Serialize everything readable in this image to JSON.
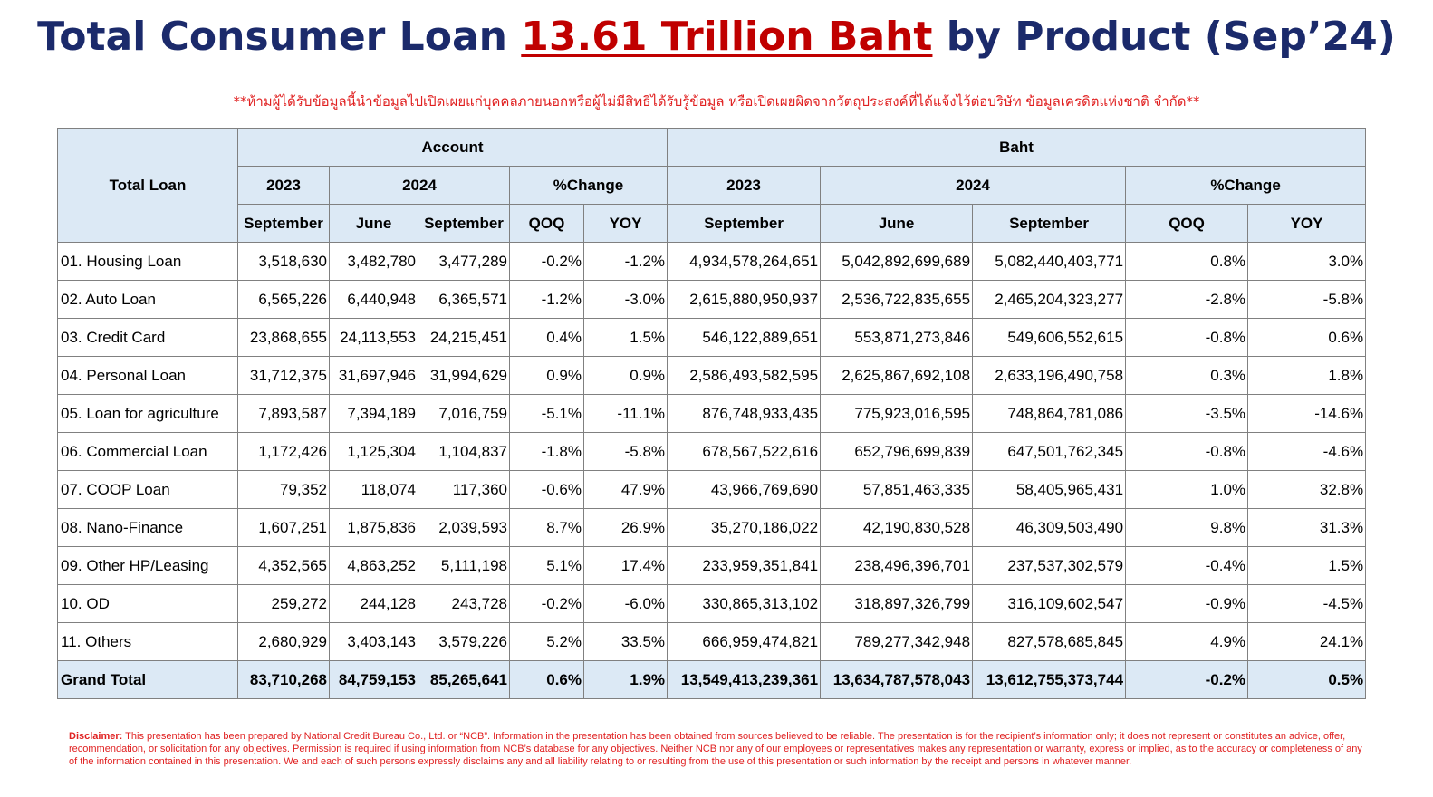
{
  "title": {
    "prefix": "Total Consumer Loan ",
    "highlight": "13.61 Trillion Baht",
    "suffix": " by Product (Sep’24)"
  },
  "warning": "**ห้ามผู้ได้รับข้อมูลนี้นำข้อมูลไปเปิดเผยแก่บุคคลภายนอกหรือผู้ไม่มีสิทธิได้รับรู้ข้อมูล หรือเปิดเผยผิดจากวัตถุประสงค์ที่ได้แจ้งไว้ต่อบริษัท ข้อมูลเครดิตแห่งชาติ จำกัด**",
  "table": {
    "row_header": "Total Loan",
    "groups": {
      "account": "Account",
      "baht": "Baht"
    },
    "years": {
      "y2023": "2023",
      "y2024": "2024",
      "change": "%Change"
    },
    "months": {
      "september": "September",
      "june": "June",
      "qoq": "QOQ",
      "yoy": "YOY"
    },
    "rows": [
      {
        "label": "01. Housing Loan",
        "acc_sep23": "3,518,630",
        "acc_jun24": "3,482,780",
        "acc_sep24": "3,477,289",
        "acc_qoq": "-0.2%",
        "acc_yoy": "-1.2%",
        "baht_sep23": "4,934,578,264,651",
        "baht_jun24": "5,042,892,699,689",
        "baht_sep24": "5,082,440,403,771",
        "baht_qoq": "0.8%",
        "baht_yoy": "3.0%"
      },
      {
        "label": "02. Auto Loan",
        "acc_sep23": "6,565,226",
        "acc_jun24": "6,440,948",
        "acc_sep24": "6,365,571",
        "acc_qoq": "-1.2%",
        "acc_yoy": "-3.0%",
        "baht_sep23": "2,615,880,950,937",
        "baht_jun24": "2,536,722,835,655",
        "baht_sep24": "2,465,204,323,277",
        "baht_qoq": "-2.8%",
        "baht_yoy": "-5.8%"
      },
      {
        "label": "03. Credit Card",
        "acc_sep23": "23,868,655",
        "acc_jun24": "24,113,553",
        "acc_sep24": "24,215,451",
        "acc_qoq": "0.4%",
        "acc_yoy": "1.5%",
        "baht_sep23": "546,122,889,651",
        "baht_jun24": "553,871,273,846",
        "baht_sep24": "549,606,552,615",
        "baht_qoq": "-0.8%",
        "baht_yoy": "0.6%"
      },
      {
        "label": "04. Personal Loan",
        "acc_sep23": "31,712,375",
        "acc_jun24": "31,697,946",
        "acc_sep24": "31,994,629",
        "acc_qoq": "0.9%",
        "acc_yoy": "0.9%",
        "baht_sep23": "2,586,493,582,595",
        "baht_jun24": "2,625,867,692,108",
        "baht_sep24": "2,633,196,490,758",
        "baht_qoq": "0.3%",
        "baht_yoy": "1.8%"
      },
      {
        "label": "05. Loan for agriculture",
        "acc_sep23": "7,893,587",
        "acc_jun24": "7,394,189",
        "acc_sep24": "7,016,759",
        "acc_qoq": "-5.1%",
        "acc_yoy": "-11.1%",
        "baht_sep23": "876,748,933,435",
        "baht_jun24": "775,923,016,595",
        "baht_sep24": "748,864,781,086",
        "baht_qoq": "-3.5%",
        "baht_yoy": "-14.6%"
      },
      {
        "label": "06. Commercial Loan",
        "acc_sep23": "1,172,426",
        "acc_jun24": "1,125,304",
        "acc_sep24": "1,104,837",
        "acc_qoq": "-1.8%",
        "acc_yoy": "-5.8%",
        "baht_sep23": "678,567,522,616",
        "baht_jun24": "652,796,699,839",
        "baht_sep24": "647,501,762,345",
        "baht_qoq": "-0.8%",
        "baht_yoy": "-4.6%"
      },
      {
        "label": "07. COOP Loan",
        "acc_sep23": "79,352",
        "acc_jun24": "118,074",
        "acc_sep24": "117,360",
        "acc_qoq": "-0.6%",
        "acc_yoy": "47.9%",
        "baht_sep23": "43,966,769,690",
        "baht_jun24": "57,851,463,335",
        "baht_sep24": "58,405,965,431",
        "baht_qoq": "1.0%",
        "baht_yoy": "32.8%"
      },
      {
        "label": "08. Nano-Finance",
        "acc_sep23": "1,607,251",
        "acc_jun24": "1,875,836",
        "acc_sep24": "2,039,593",
        "acc_qoq": "8.7%",
        "acc_yoy": "26.9%",
        "baht_sep23": "35,270,186,022",
        "baht_jun24": "42,190,830,528",
        "baht_sep24": "46,309,503,490",
        "baht_qoq": "9.8%",
        "baht_yoy": "31.3%"
      },
      {
        "label": "09. Other HP/Leasing",
        "acc_sep23": "4,352,565",
        "acc_jun24": "4,863,252",
        "acc_sep24": "5,111,198",
        "acc_qoq": "5.1%",
        "acc_yoy": "17.4%",
        "baht_sep23": "233,959,351,841",
        "baht_jun24": "238,496,396,701",
        "baht_sep24": "237,537,302,579",
        "baht_qoq": "-0.4%",
        "baht_yoy": "1.5%"
      },
      {
        "label": "10. OD",
        "acc_sep23": "259,272",
        "acc_jun24": "244,128",
        "acc_sep24": "243,728",
        "acc_qoq": "-0.2%",
        "acc_yoy": "-6.0%",
        "baht_sep23": "330,865,313,102",
        "baht_jun24": "318,897,326,799",
        "baht_sep24": "316,109,602,547",
        "baht_qoq": "-0.9%",
        "baht_yoy": "-4.5%"
      },
      {
        "label": "11. Others",
        "acc_sep23": "2,680,929",
        "acc_jun24": "3,403,143",
        "acc_sep24": "3,579,226",
        "acc_qoq": "5.2%",
        "acc_yoy": "33.5%",
        "baht_sep23": "666,959,474,821",
        "baht_jun24": "789,277,342,948",
        "baht_sep24": "827,578,685,845",
        "baht_qoq": "4.9%",
        "baht_yoy": "24.1%"
      }
    ],
    "total": {
      "label": "Grand Total",
      "acc_sep23": "83,710,268",
      "acc_jun24": "84,759,153",
      "acc_sep24": "85,265,641",
      "acc_qoq": "0.6%",
      "acc_yoy": "1.9%",
      "baht_sep23": "13,549,413,239,361",
      "baht_jun24": "13,634,787,578,043",
      "baht_sep24": "13,612,755,373,744",
      "baht_qoq": "-0.2%",
      "baht_yoy": "0.5%"
    }
  },
  "disclaimer": {
    "label": "Disclaimer:",
    "text": " This presentation has been prepared by National Credit Bureau Co., Ltd. or “NCB”. Information in the presentation has been obtained from sources believed to be reliable. The presentation is for the recipient’s information only; it does not represent or constitutes an advice, offer, recommendation, or solicitation for any objectives. Permission is required if using information from NCB’s database for any objectives. Neither NCB nor any of our employees or representatives makes any representation or warranty, express or implied, as to the accuracy or completeness of any of the information contained in this presentation. We and each of such persons expressly disclaims any and all liability relating to or resulting from the use of this presentation or such information by the receipt and persons in whatever manner."
  },
  "colors": {
    "title": "#1b2a6b",
    "highlight": "#c00000",
    "warning": "#e02020",
    "header_fill": "#dce9f5",
    "border": "#808080"
  }
}
